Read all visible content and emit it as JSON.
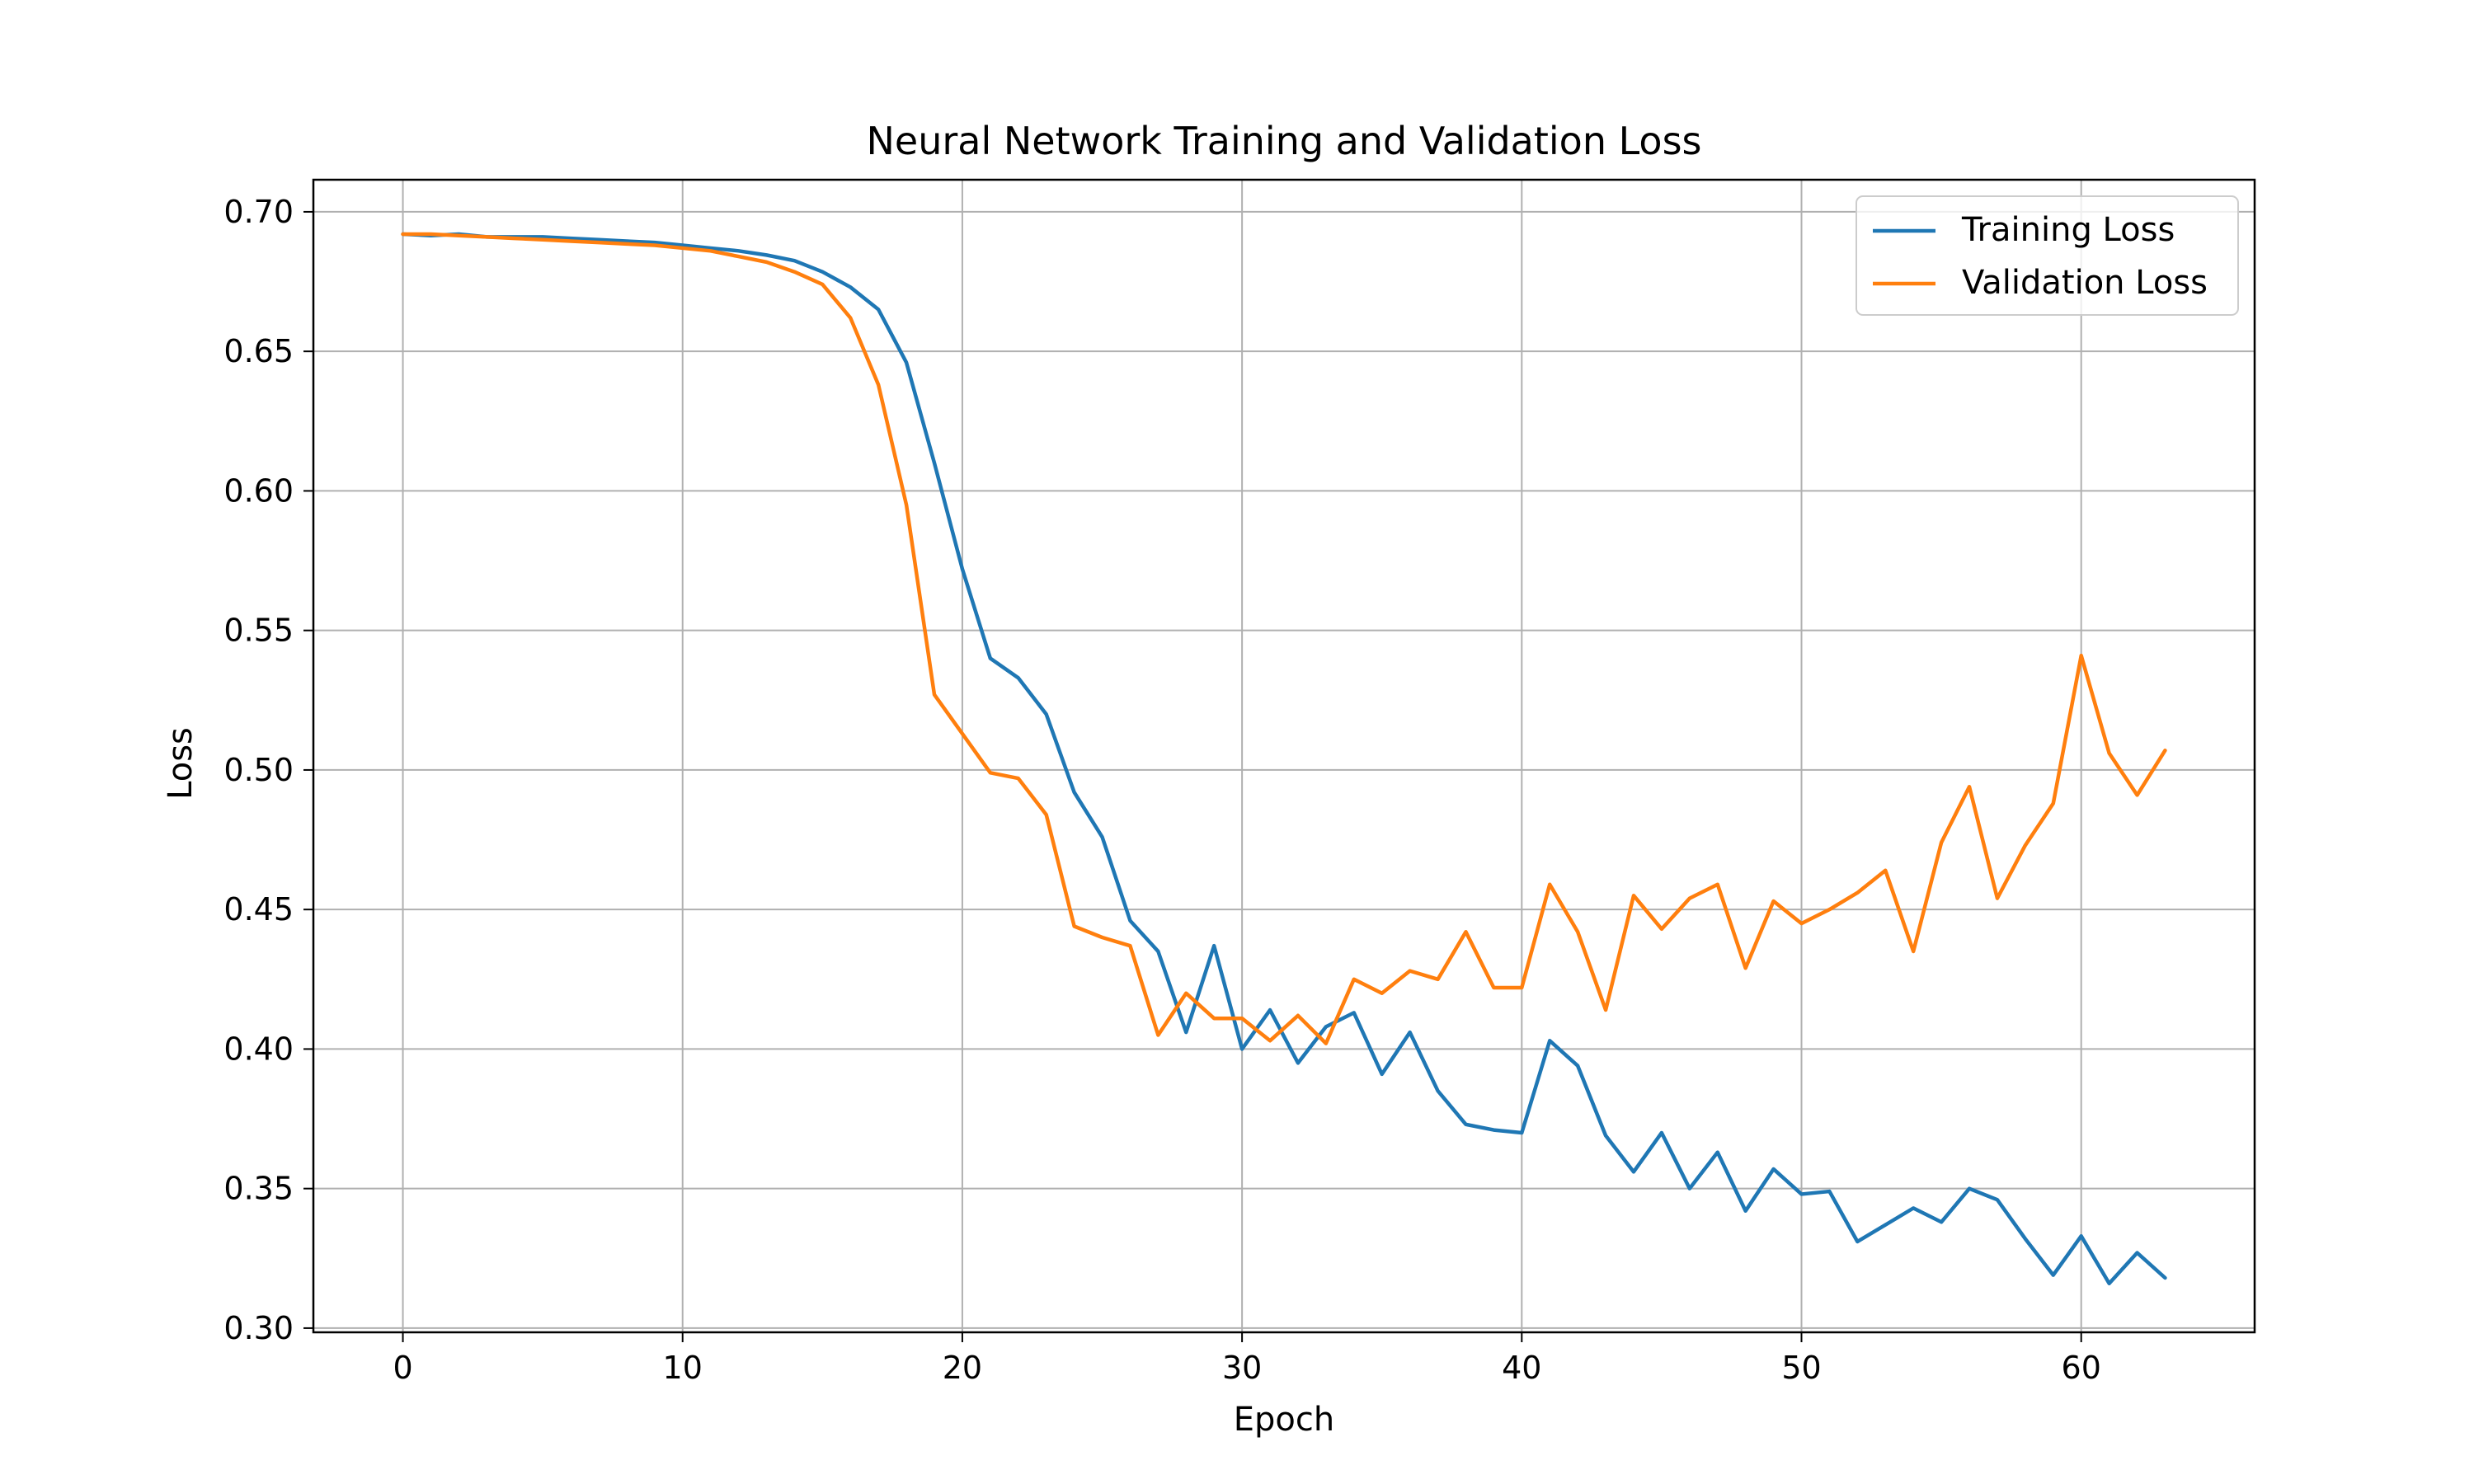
{
  "chart_data": {
    "type": "line",
    "title": "Neural Network Training and Validation Loss",
    "xlabel": "Epoch",
    "ylabel": "Loss",
    "xlim": [
      -3.2,
      66.2
    ],
    "ylim": [
      0.2985,
      0.7115
    ],
    "xticks": [
      0,
      10,
      20,
      30,
      40,
      50,
      60
    ],
    "yticks": [
      0.3,
      0.35,
      0.4,
      0.45,
      0.5,
      0.55,
      0.6,
      0.65,
      0.7
    ],
    "ytick_format": 2,
    "grid": true,
    "legend_position": "upper right",
    "x": [
      0,
      1,
      2,
      3,
      4,
      5,
      6,
      7,
      8,
      9,
      10,
      11,
      12,
      13,
      14,
      15,
      16,
      17,
      18,
      19,
      20,
      21,
      22,
      23,
      24,
      25,
      26,
      27,
      28,
      29,
      30,
      31,
      32,
      33,
      34,
      35,
      36,
      37,
      38,
      39,
      40,
      41,
      42,
      43,
      44,
      45,
      46,
      47,
      48,
      49,
      50,
      51,
      52,
      53,
      54,
      55,
      56,
      57,
      58,
      59,
      60,
      61,
      62,
      63
    ],
    "series": [
      {
        "name": "Training Loss",
        "color": "#1f77b4",
        "values": [
          0.692,
          0.6915,
          0.692,
          0.691,
          0.691,
          0.691,
          0.6905,
          0.69,
          0.6895,
          0.689,
          0.688,
          0.687,
          0.686,
          0.6845,
          0.6825,
          0.6785,
          0.673,
          0.665,
          0.646,
          0.61,
          0.572,
          0.54,
          0.533,
          0.52,
          0.492,
          0.476,
          0.446,
          0.435,
          0.406,
          0.437,
          0.4,
          0.414,
          0.395,
          0.408,
          0.413,
          0.391,
          0.406,
          0.385,
          0.373,
          0.371,
          0.37,
          0.403,
          0.394,
          0.369,
          0.356,
          0.37,
          0.35,
          0.363,
          0.342,
          0.357,
          0.348,
          0.349,
          0.331,
          0.337,
          0.343,
          0.338,
          0.35,
          0.346,
          0.332,
          0.319,
          0.333,
          0.316,
          0.327,
          0.318
        ]
      },
      {
        "name": "Validation Loss",
        "color": "#ff7f0e",
        "values": [
          0.692,
          0.692,
          0.6915,
          0.691,
          0.6905,
          0.69,
          0.6895,
          0.689,
          0.6885,
          0.688,
          0.687,
          0.686,
          0.684,
          0.682,
          0.6785,
          0.674,
          0.662,
          0.638,
          0.595,
          0.527,
          0.513,
          0.499,
          0.497,
          0.484,
          0.444,
          0.44,
          0.437,
          0.405,
          0.42,
          0.411,
          0.411,
          0.403,
          0.412,
          0.402,
          0.425,
          0.42,
          0.428,
          0.425,
          0.442,
          0.422,
          0.422,
          0.459,
          0.442,
          0.414,
          0.455,
          0.443,
          0.454,
          0.459,
          0.429,
          0.453,
          0.445,
          0.45,
          0.456,
          0.464,
          0.435,
          0.474,
          0.494,
          0.454,
          0.473,
          0.488,
          0.541,
          0.506,
          0.491,
          0.507
        ]
      }
    ]
  }
}
